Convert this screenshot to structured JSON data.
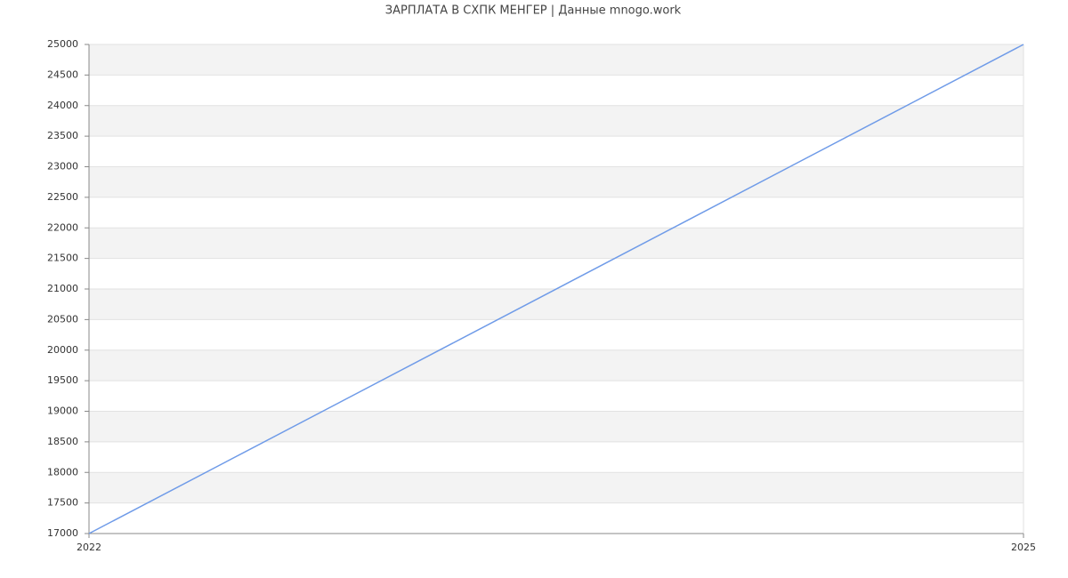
{
  "chart_data": {
    "type": "line",
    "title": "ЗАРПЛАТА В СХПК МЕНГЕР | Данные mnogo.work",
    "x": [
      2022,
      2025
    ],
    "values": [
      17000,
      25000
    ],
    "color": "#6f9be8",
    "xlim": [
      2022,
      2025
    ],
    "xticks": [
      2022,
      2025
    ],
    "ylim": [
      17000,
      25000
    ],
    "yticks": [
      17000,
      17500,
      18000,
      18500,
      19000,
      19500,
      20000,
      20500,
      21000,
      21500,
      22000,
      22500,
      23000,
      23500,
      24000,
      24500,
      25000
    ],
    "grid": true
  }
}
